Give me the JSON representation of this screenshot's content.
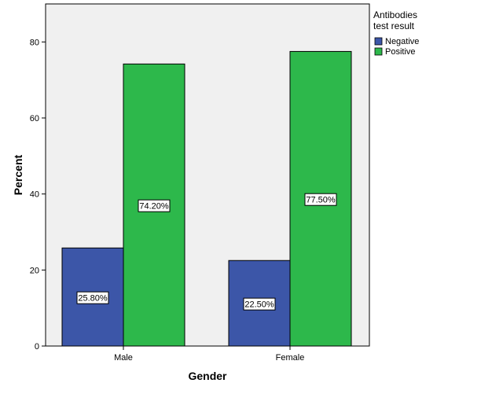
{
  "chart_data": {
    "type": "bar",
    "categories": [
      "Male",
      "Female"
    ],
    "series": [
      {
        "name": "Negative",
        "values": [
          25.8,
          22.5
        ],
        "labels": [
          "25.80%",
          "22.50%"
        ],
        "color": "#3c56a8"
      },
      {
        "name": "Positive",
        "values": [
          74.2,
          77.5
        ],
        "labels": [
          "74.20%",
          "77.50%"
        ],
        "color": "#2db84b"
      }
    ],
    "xlabel": "Gender",
    "ylabel": "Percent",
    "ylim": [
      0,
      90
    ],
    "yticks": [
      0,
      20,
      40,
      60,
      80
    ],
    "legend": {
      "title_lines": [
        "Antibodies",
        "test result"
      ],
      "position": "right"
    },
    "plot_background": "#f0f0f0",
    "grid": false
  }
}
